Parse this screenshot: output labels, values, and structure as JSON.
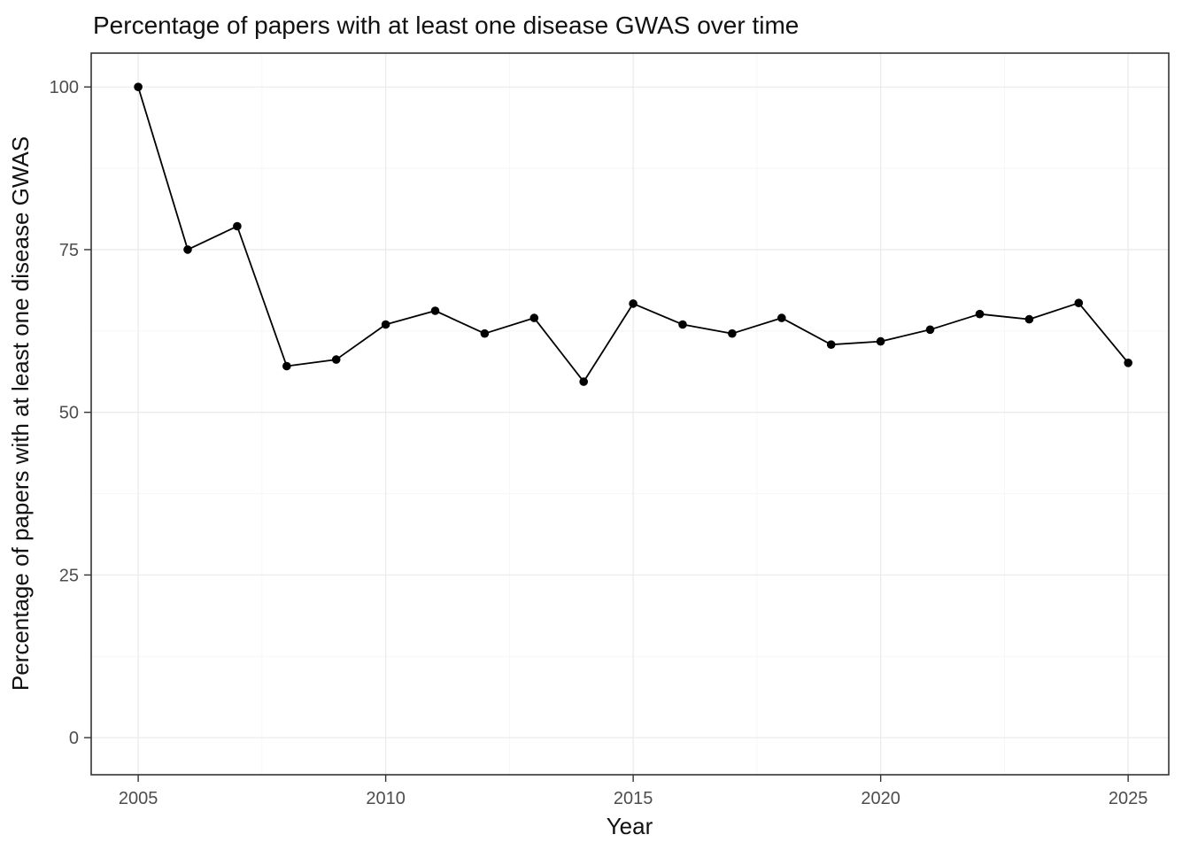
{
  "chart_data": {
    "type": "line",
    "title": "Percentage of papers with at least one disease GWAS over time",
    "xlabel": "Year",
    "ylabel": "Percentage of papers with at least one disease GWAS",
    "x": [
      2005,
      2006,
      2007,
      2008,
      2009,
      2010,
      2011,
      2012,
      2013,
      2014,
      2015,
      2016,
      2017,
      2018,
      2019,
      2020,
      2021,
      2022,
      2023,
      2024,
      2025
    ],
    "y": [
      100,
      75,
      78.6,
      57.1,
      58.1,
      63.5,
      65.6,
      62.1,
      64.5,
      54.7,
      66.7,
      63.5,
      62.1,
      64.5,
      60.4,
      60.9,
      62.7,
      65.1,
      64.3,
      66.8,
      57.6
    ],
    "x_ticks": [
      2005,
      2010,
      2015,
      2020,
      2025
    ],
    "y_ticks": [
      0,
      25,
      50,
      75,
      100
    ],
    "x_minor": [
      2007.5,
      2012.5,
      2017.5,
      2022.5
    ],
    "y_minor": [
      12.5,
      37.5,
      62.5,
      87.5
    ],
    "xlim": [
      2004.05,
      2025.82
    ],
    "ylim": [
      -5.7,
      105.2
    ],
    "grid": true,
    "legend": "none",
    "line_color": "#000000",
    "point_color": "#000000",
    "grid_color": "#ebebeb",
    "minor_grid_color": "#f5f5f5",
    "panel_border_color": "#333333",
    "tick_color": "#333333",
    "tick_label_color": "#4d4d4d"
  }
}
